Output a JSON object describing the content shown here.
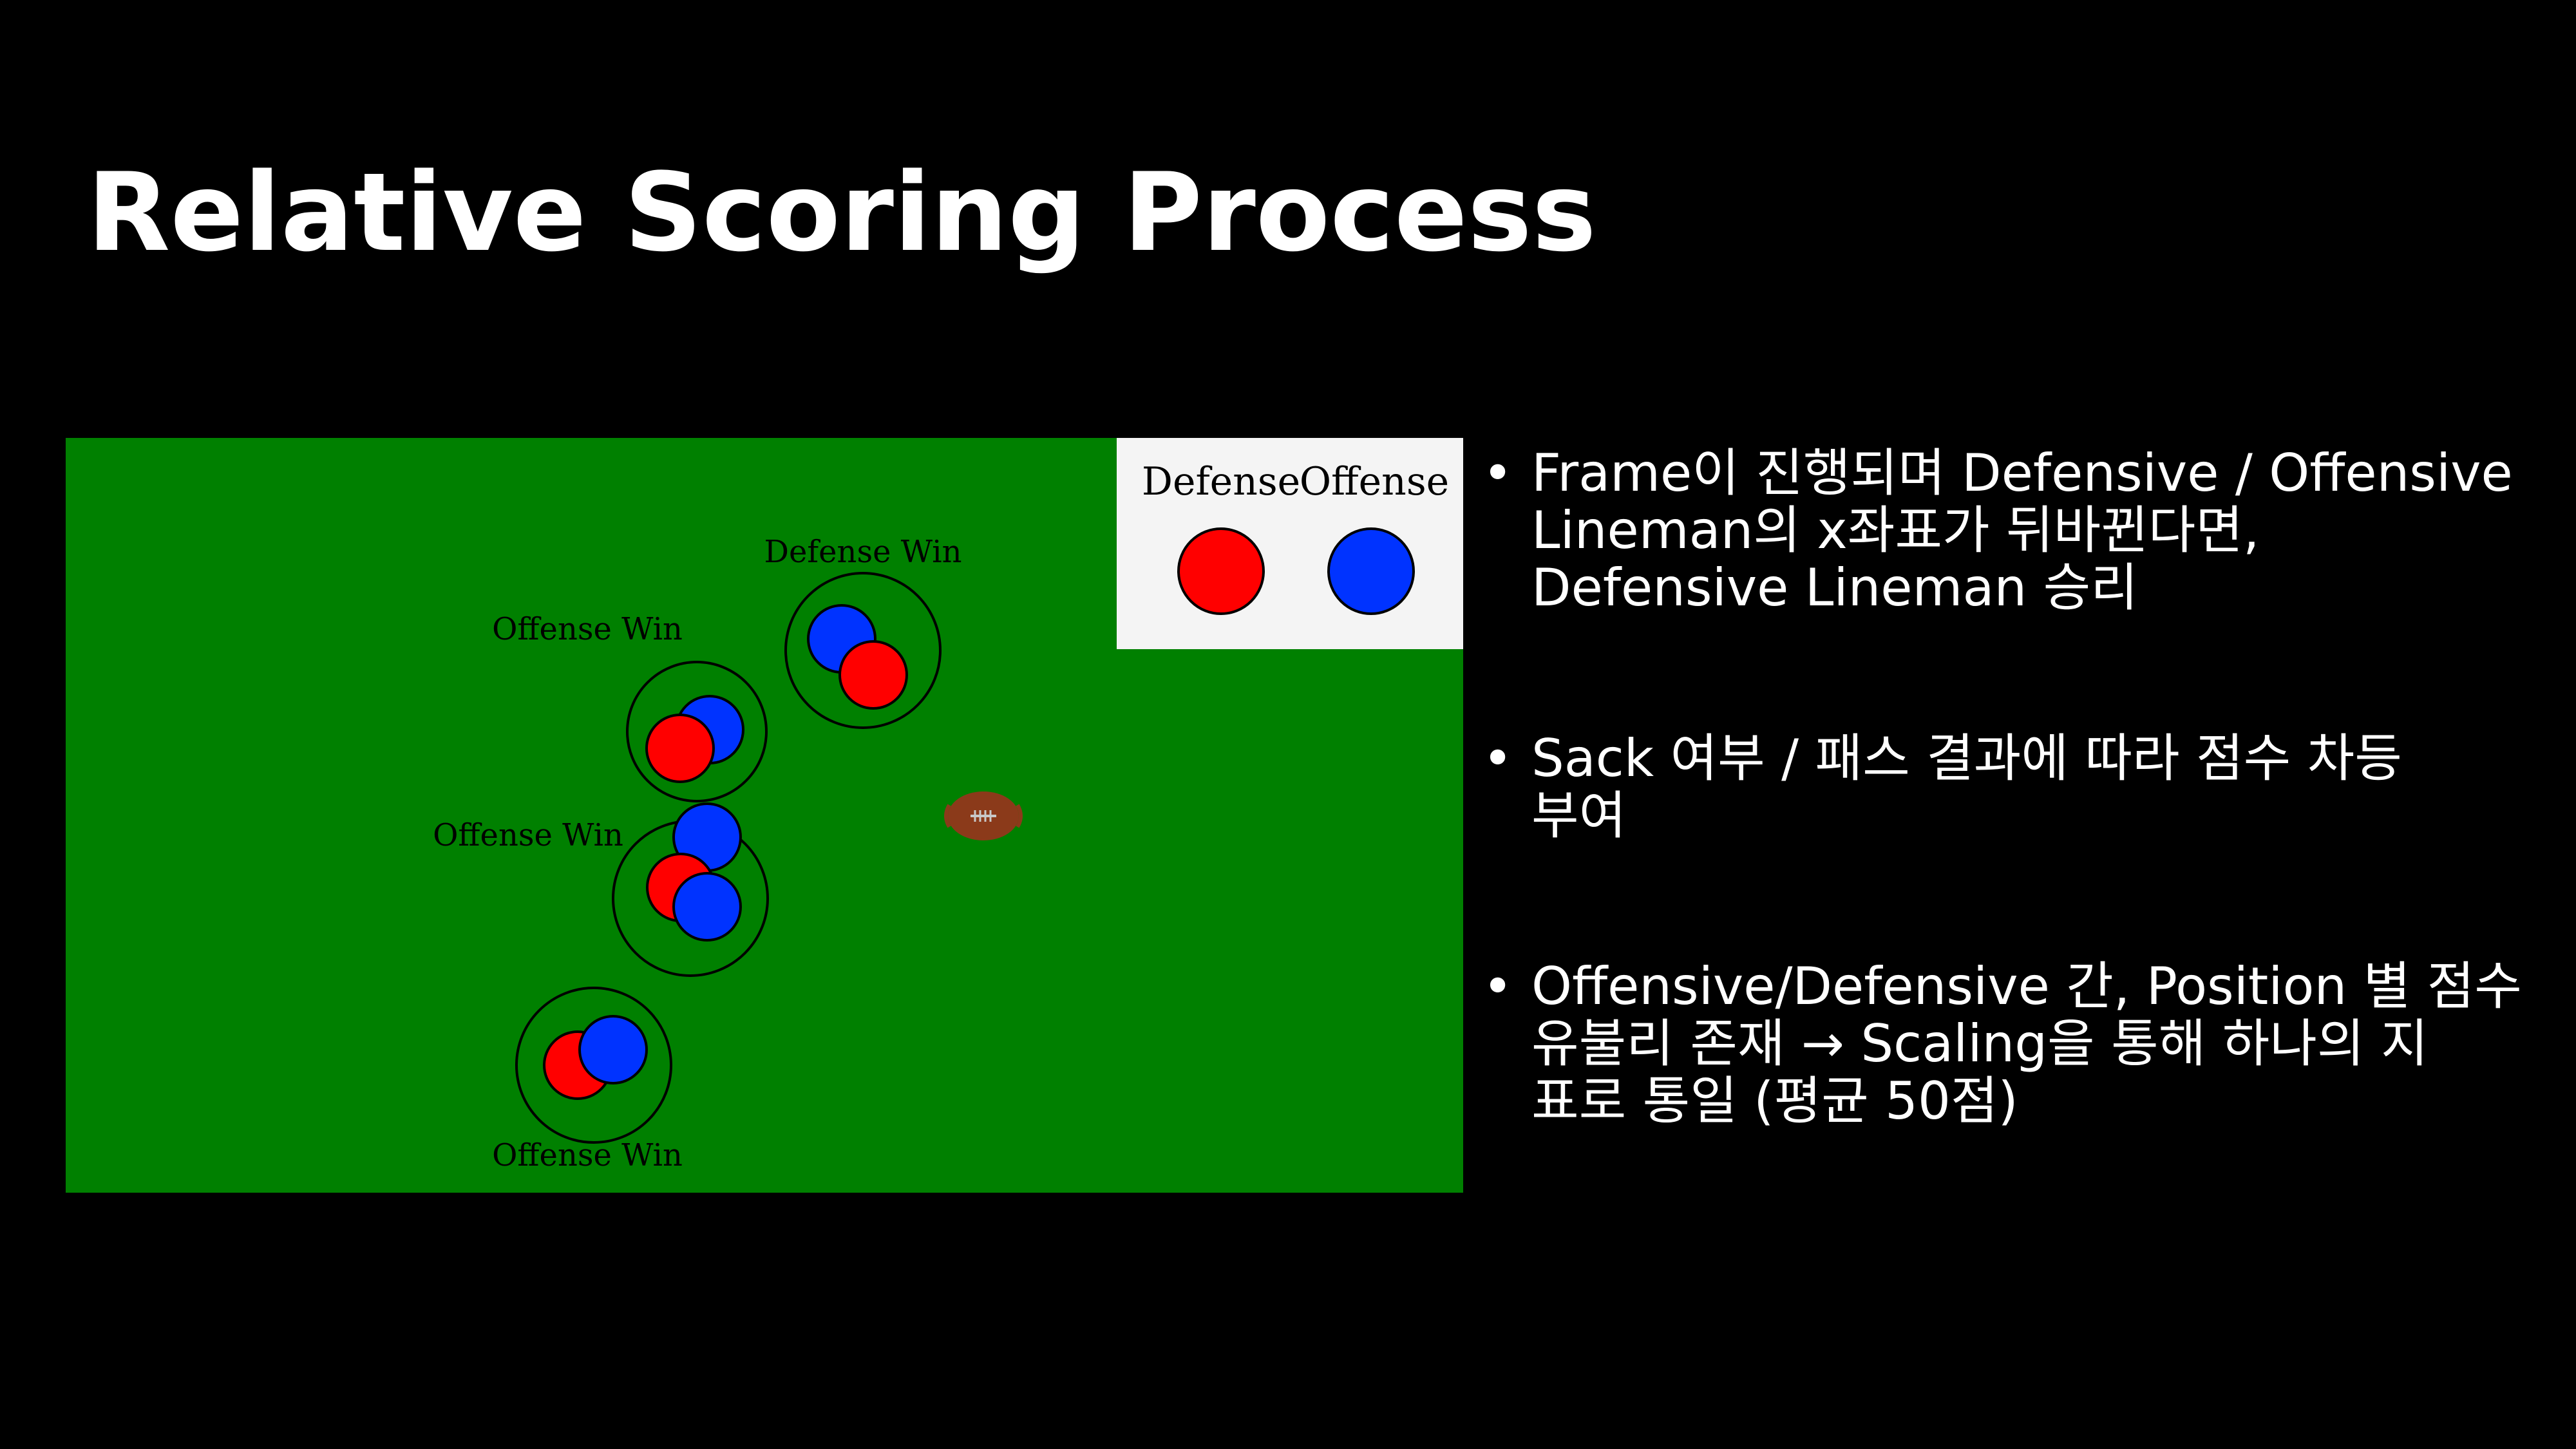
{
  "slide": {
    "title": "Relative Scoring Process"
  },
  "diagram": {
    "field_color": "#008000",
    "defense_color": "#ff0000",
    "offense_color": "#0033ff",
    "legend": {
      "defense_label": "Defense",
      "offense_label": "Offense"
    },
    "matchups": [
      {
        "label": "Defense Win",
        "result": "defense"
      },
      {
        "label": "Offense Win",
        "result": "offense"
      },
      {
        "label": "Offense Win",
        "result": "offense"
      },
      {
        "label": "Offense Win",
        "result": "offense"
      }
    ],
    "ball_icon": "football-icon"
  },
  "bullets": [
    {
      "lines": [
        "Frame이 진행되며 Defensive / Offensive",
        "Lineman의 x좌표가 뒤바뀐다면,",
        "Defensive Lineman 승리"
      ]
    },
    {
      "lines": [
        "Sack 여부 / 패스 결과에 따라 점수 차등",
        "부여"
      ]
    },
    {
      "lines": [
        "Offensive/Defensive 간, Position 별 점수",
        "유불리 존재 → Scaling을 통해 하나의 지",
        "표로 통일 (평균 50점)"
      ]
    }
  ]
}
